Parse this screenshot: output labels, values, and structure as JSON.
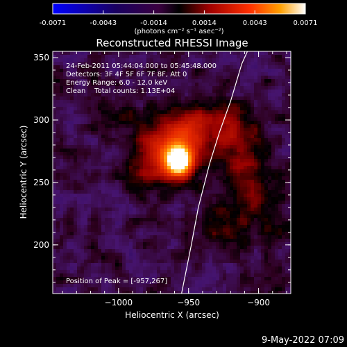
{
  "chart_data": {
    "type": "heatmap",
    "title": "Reconstructed RHESSI Image",
    "xlabel": "Heliocentric X (arcsec)",
    "ylabel": "Heliocentric Y (arcsec)",
    "xlim": [
      -1047,
      -877
    ],
    "ylim": [
      161,
      355
    ],
    "x_ticks": [
      -1000,
      -950,
      -900
    ],
    "y_ticks": [
      200,
      250,
      300,
      350
    ],
    "colorbar": {
      "label": "(photons cm⁻² s⁻¹ asec⁻²)",
      "range": [
        -0.0071,
        0.0071
      ],
      "ticks": [
        "-0.0071",
        "-0.0043",
        "-0.0014",
        "0.0014",
        "0.0043",
        "0.0071"
      ]
    },
    "annotations": [
      "24-Feb-2011 05:44:04.000 to 05:45:48.000",
      "Detectors: 3F 4F 5F 6F 7F 8F, Att 0",
      "Energy Range: 6.0 - 12.0 keV",
      "Clean    Total counts: 1.13E+04"
    ],
    "peak": {
      "x": -957,
      "y": 267,
      "label": "Position of Peak = [-957,267]"
    },
    "limb_curve": [
      [
        -955,
        161
      ],
      [
        -948,
        200
      ],
      [
        -943,
        230
      ],
      [
        -935,
        265
      ],
      [
        -928,
        290
      ],
      [
        -920,
        315
      ],
      [
        -912,
        345
      ],
      [
        -908,
        355
      ]
    ],
    "sources": [
      {
        "x": -957,
        "y": 267,
        "sx": 6,
        "sy": 8,
        "amp": 1.0
      },
      {
        "x": -958,
        "y": 275,
        "sx": 14,
        "sy": 16,
        "amp": 0.45
      },
      {
        "x": -945,
        "y": 297,
        "sx": 18,
        "sy": 12,
        "amp": 0.28
      },
      {
        "x": -978,
        "y": 268,
        "sx": 12,
        "sy": 18,
        "amp": 0.25
      },
      {
        "x": -915,
        "y": 290,
        "sx": 14,
        "sy": 18,
        "amp": 0.22
      },
      {
        "x": -910,
        "y": 255,
        "sx": 12,
        "sy": 16,
        "amp": 0.22
      },
      {
        "x": -925,
        "y": 215,
        "sx": 12,
        "sy": 14,
        "amp": 0.18
      },
      {
        "x": -1005,
        "y": 305,
        "sx": 14,
        "sy": 10,
        "amp": 0.15
      },
      {
        "x": -895,
        "y": 225,
        "sx": 10,
        "sy": 18,
        "amp": 0.15
      }
    ]
  },
  "footer": {
    "timestamp": "9-May-2022 07:09"
  }
}
